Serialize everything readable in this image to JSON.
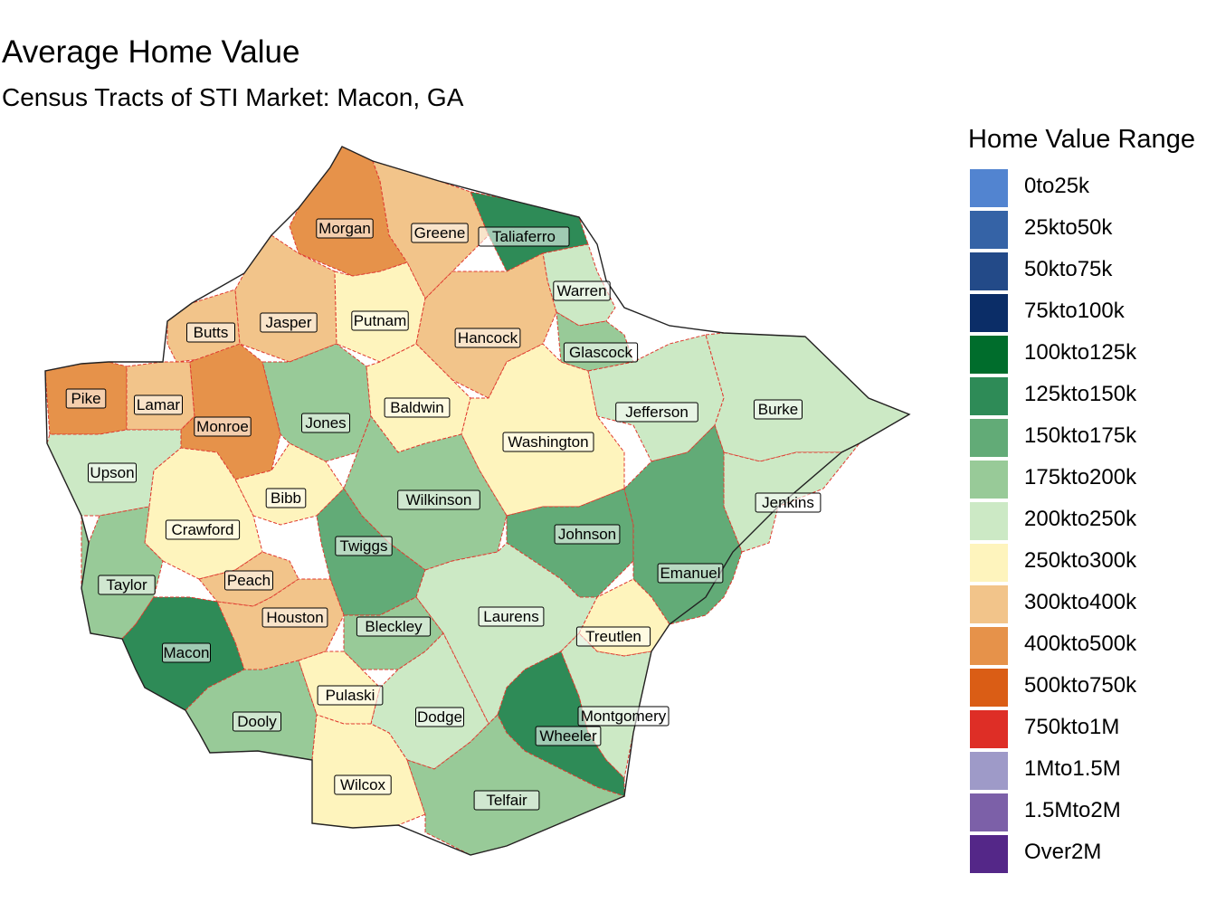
{
  "title": "Average Home Value",
  "subtitle": "Census Tracts of STI Market: Macon, GA",
  "legend": {
    "title": "Home Value Range",
    "items": [
      {
        "label": "0to25k",
        "color": "#5284d0"
      },
      {
        "label": "25kto50k",
        "color": "#3563a6"
      },
      {
        "label": "50kto75k",
        "color": "#234a88"
      },
      {
        "label": "75kto100k",
        "color": "#0b2d67"
      },
      {
        "label": "100kto125k",
        "color": "#006d2c"
      },
      {
        "label": "125kto150k",
        "color": "#2e8b57"
      },
      {
        "label": "150kto175k",
        "color": "#62ab77"
      },
      {
        "label": "175kto200k",
        "color": "#98ca98"
      },
      {
        "label": "200kto250k",
        "color": "#cce9c5"
      },
      {
        "label": "250kto300k",
        "color": "#fef4bd"
      },
      {
        "label": "300kto400k",
        "color": "#f2c48a"
      },
      {
        "label": "400kto500k",
        "color": "#e6924a"
      },
      {
        "label": "500kto750k",
        "color": "#da5d15"
      },
      {
        "label": "750kto1M",
        "color": "#de2e26"
      },
      {
        "label": "1Mto1.5M",
        "color": "#9e9ac8"
      },
      {
        "label": "1.5Mto2M",
        "color": "#7c60a8"
      },
      {
        "label": "Over2M",
        "color": "#542788"
      }
    ]
  },
  "counties": [
    {
      "name": "Morgan",
      "value_range": "400kto500k"
    },
    {
      "name": "Greene",
      "value_range": "300kto400k"
    },
    {
      "name": "Taliaferro",
      "value_range": "125kto150k"
    },
    {
      "name": "Warren",
      "value_range": "200kto250k"
    },
    {
      "name": "Butts",
      "value_range": "300kto400k"
    },
    {
      "name": "Jasper",
      "value_range": "300kto400k"
    },
    {
      "name": "Putnam",
      "value_range": "250kto300k"
    },
    {
      "name": "Hancock",
      "value_range": "300kto400k"
    },
    {
      "name": "Glascock",
      "value_range": "175kto200k"
    },
    {
      "name": "Pike",
      "value_range": "400kto500k"
    },
    {
      "name": "Lamar",
      "value_range": "300kto400k"
    },
    {
      "name": "Monroe",
      "value_range": "400kto500k"
    },
    {
      "name": "Jones",
      "value_range": "175kto200k"
    },
    {
      "name": "Baldwin",
      "value_range": "250kto300k"
    },
    {
      "name": "Jefferson",
      "value_range": "200kto250k"
    },
    {
      "name": "Burke",
      "value_range": "200kto250k"
    },
    {
      "name": "Washington",
      "value_range": "250kto300k"
    },
    {
      "name": "Upson",
      "value_range": "200kto250k"
    },
    {
      "name": "Bibb",
      "value_range": "250kto300k"
    },
    {
      "name": "Wilkinson",
      "value_range": "175kto200k"
    },
    {
      "name": "Jenkins",
      "value_range": "200kto250k"
    },
    {
      "name": "Crawford",
      "value_range": "250kto300k"
    },
    {
      "name": "Twiggs",
      "value_range": "150kto175k"
    },
    {
      "name": "Johnson",
      "value_range": "150kto175k"
    },
    {
      "name": "Emanuel",
      "value_range": "150kto175k"
    },
    {
      "name": "Taylor",
      "value_range": "175kto200k"
    },
    {
      "name": "Peach",
      "value_range": "300kto400k"
    },
    {
      "name": "Houston",
      "value_range": "300kto400k"
    },
    {
      "name": "Laurens",
      "value_range": "200kto250k"
    },
    {
      "name": "Bleckley",
      "value_range": "175kto200k"
    },
    {
      "name": "Treutlen",
      "value_range": "250kto300k"
    },
    {
      "name": "Macon",
      "value_range": "125kto150k"
    },
    {
      "name": "Pulaski",
      "value_range": "250kto300k"
    },
    {
      "name": "Dodge",
      "value_range": "200kto250k"
    },
    {
      "name": "Montgomery",
      "value_range": "200kto250k"
    },
    {
      "name": "Dooly",
      "value_range": "175kto200k"
    },
    {
      "name": "Wheeler",
      "value_range": "125kto150k"
    },
    {
      "name": "Wilcox",
      "value_range": "250kto300k"
    },
    {
      "name": "Telfair",
      "value_range": "175kto200k"
    }
  ]
}
